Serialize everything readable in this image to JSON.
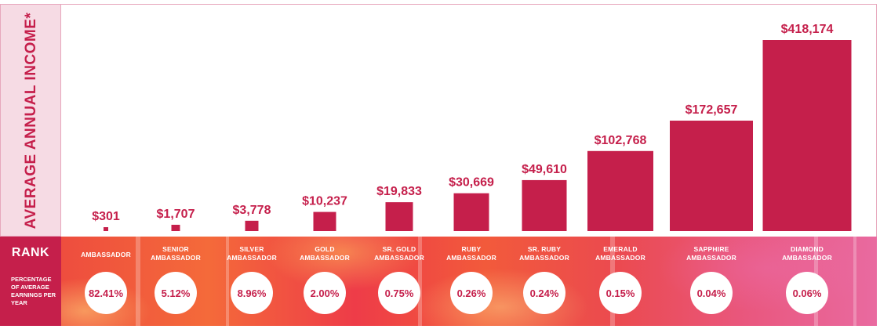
{
  "y_label": "AVERAGE ANNUAL INCOME*",
  "rank_label": "RANK",
  "percentage_label": "PERCENTAGE OF AVERAGE EARNINGS PER YEAR",
  "chart_data": {
    "type": "bar",
    "categories": [
      "AMBASSADOR",
      "SENIOR AMBASSADOR",
      "SILVER AMBASSADOR",
      "GOLD AMBASSADOR",
      "SR. GOLD AMBASSADOR",
      "RUBY AMBASSADOR",
      "SR. RUBY AMBASSADOR",
      "EMERALD AMBASSADOR",
      "SAPPHIRE AMBASSADOR",
      "DIAMOND AMBASSADOR"
    ],
    "values": [
      301,
      1707,
      3778,
      10237,
      19833,
      30669,
      49610,
      102768,
      172657,
      418174
    ],
    "value_labels": [
      "$301",
      "$1,707",
      "$3,778",
      "$10,237",
      "$19,833",
      "$30,669",
      "$49,610",
      "$102,768",
      "$172,657",
      "$418,174"
    ],
    "percentages": [
      "82.41%",
      "5.12%",
      "8.96%",
      "2.00%",
      "0.75%",
      "0.26%",
      "0.24%",
      "0.15%",
      "0.04%",
      "0.06%"
    ],
    "ylabel": "AVERAGE ANNUAL INCOME*",
    "color": "#c51f4b",
    "grid": false,
    "legend": "none"
  }
}
